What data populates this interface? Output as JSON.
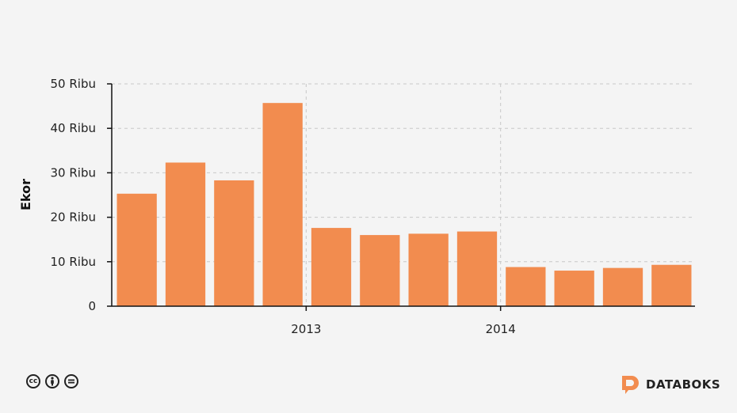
{
  "chart_data": {
    "type": "bar",
    "ylabel": "Ekor",
    "yticks": [
      {
        "value": 0,
        "label": "0"
      },
      {
        "value": 10000,
        "label": "10 Ribu"
      },
      {
        "value": 20000,
        "label": "20 Ribu"
      },
      {
        "value": 30000,
        "label": "30 Ribu"
      },
      {
        "value": 40000,
        "label": "40 Ribu"
      },
      {
        "value": 50000,
        "label": "50 Ribu"
      }
    ],
    "ylim": [
      0,
      50000
    ],
    "xticks": [
      "2013",
      "2014"
    ],
    "grid": true,
    "bar_color": "#f28c4f",
    "values": [
      25300,
      32300,
      28300,
      45700,
      17600,
      16000,
      16300,
      16800,
      8800,
      8000,
      8600,
      9300
    ]
  },
  "footer": {
    "license_icons": [
      "cc-icon",
      "by-icon",
      "nd-icon"
    ],
    "brand": "DATABOKS",
    "brand_color": "#f28c4f"
  }
}
